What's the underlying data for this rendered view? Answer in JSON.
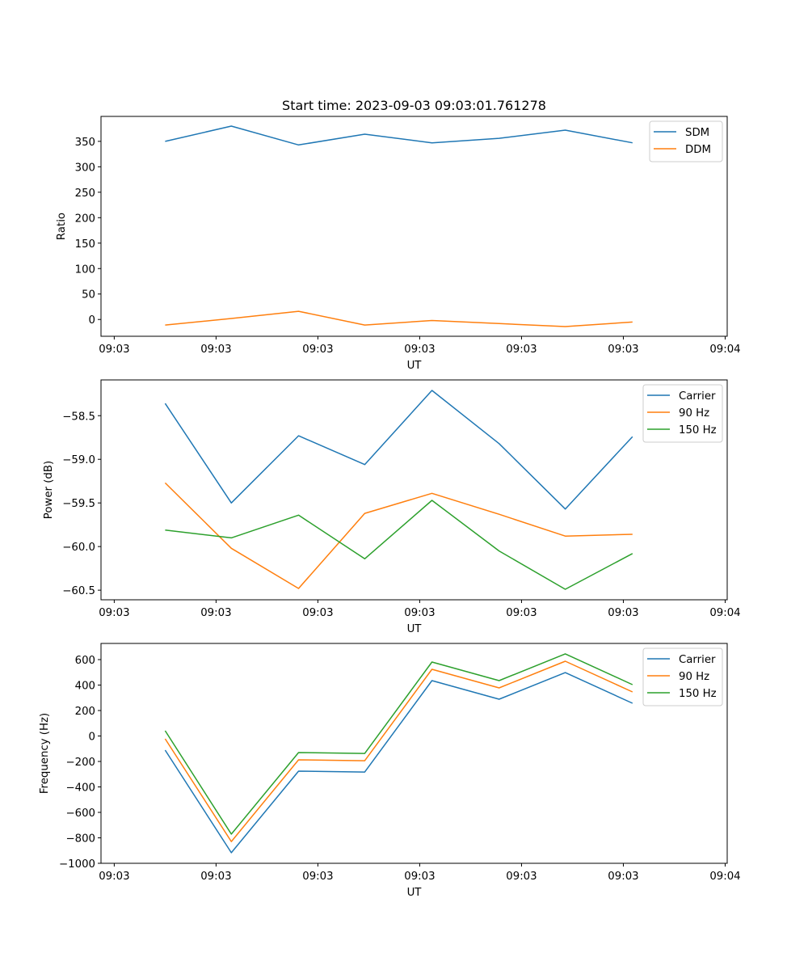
{
  "title": "Start time: 2023-09-03 09:03:01.761278",
  "chart_data": [
    {
      "type": "line",
      "title": "Start time: 2023-09-03 09:03:01.761278",
      "xlabel": "UT",
      "ylabel": "Ratio",
      "x_tick_labels": [
        "09:03",
        "09:03",
        "09:03",
        "09:03",
        "09:03",
        "09:03",
        "09:04"
      ],
      "y_ticks": [
        0,
        50,
        100,
        150,
        200,
        250,
        300,
        350
      ],
      "y_tick_labels": [
        "0",
        "50",
        "100",
        "150",
        "200",
        "250",
        "300",
        "350"
      ],
      "ylim": [
        -33,
        399
      ],
      "x_positions": [
        0.5,
        1.15,
        1.81,
        2.46,
        3.12,
        3.78,
        4.43,
        5.09
      ],
      "xlim": [
        -0.13,
        6.02
      ],
      "legend": "top-right",
      "grid": false,
      "series": [
        {
          "name": "SDM",
          "color": "#1f77b4",
          "values": [
            350,
            380,
            343,
            364,
            347,
            356,
            372,
            347
          ]
        },
        {
          "name": "DDM",
          "color": "#ff7f0e",
          "values": [
            -11,
            2,
            16,
            -11,
            -2,
            -8,
            -14,
            -5
          ]
        }
      ]
    },
    {
      "type": "line",
      "title": "",
      "xlabel": "UT",
      "ylabel": "Power (dB)",
      "x_tick_labels": [
        "09:03",
        "09:03",
        "09:03",
        "09:03",
        "09:03",
        "09:03",
        "09:04"
      ],
      "y_ticks": [
        -60.5,
        -60.0,
        -59.5,
        -59.0,
        -58.5
      ],
      "y_tick_labels": [
        "−60.5",
        "−60.0",
        "−59.5",
        "−59.0",
        "−58.5"
      ],
      "ylim": [
        -60.61,
        -58.09
      ],
      "x_positions": [
        0.5,
        1.15,
        1.81,
        2.46,
        3.12,
        3.78,
        4.43,
        5.09
      ],
      "xlim": [
        -0.13,
        6.02
      ],
      "legend": "top-right",
      "grid": false,
      "series": [
        {
          "name": "Carrier",
          "color": "#1f77b4",
          "values": [
            -58.36,
            -59.5,
            -58.73,
            -59.06,
            -58.21,
            -58.82,
            -59.57,
            -58.74
          ]
        },
        {
          "name": "90 Hz",
          "color": "#ff7f0e",
          "values": [
            -59.27,
            -60.02,
            -60.48,
            -59.62,
            -59.39,
            -59.63,
            -59.88,
            -59.86
          ]
        },
        {
          "name": "150 Hz",
          "color": "#2ca02c",
          "values": [
            -59.81,
            -59.9,
            -59.64,
            -60.14,
            -59.47,
            -60.05,
            -60.49,
            -60.08
          ]
        }
      ]
    },
    {
      "type": "line",
      "title": "",
      "xlabel": "UT",
      "ylabel": "Frequency (Hz)",
      "x_tick_labels": [
        "09:03",
        "09:03",
        "09:03",
        "09:03",
        "09:03",
        "09:03",
        "09:04"
      ],
      "y_ticks": [
        -1000,
        -800,
        -600,
        -400,
        -200,
        0,
        200,
        400,
        600
      ],
      "y_tick_labels": [
        "−1000",
        "−800",
        "−600",
        "−400",
        "−200",
        "0",
        "200",
        "400",
        "600"
      ],
      "ylim": [
        -1000,
        727
      ],
      "x_positions": [
        0.5,
        1.15,
        1.81,
        2.46,
        3.12,
        3.78,
        4.43,
        5.09
      ],
      "xlim": [
        -0.13,
        6.02
      ],
      "legend": "top-right",
      "grid": false,
      "series": [
        {
          "name": "Carrier",
          "color": "#1f77b4",
          "values": [
            -111,
            -917,
            -276,
            -283,
            435,
            289,
            498,
            257
          ]
        },
        {
          "name": "90 Hz",
          "color": "#ff7f0e",
          "values": [
            -22,
            -829,
            -187,
            -194,
            524,
            378,
            587,
            346
          ]
        },
        {
          "name": "150 Hz",
          "color": "#2ca02c",
          "values": [
            41,
            -771,
            -130,
            -137,
            581,
            435,
            645,
            403
          ]
        }
      ]
    }
  ]
}
